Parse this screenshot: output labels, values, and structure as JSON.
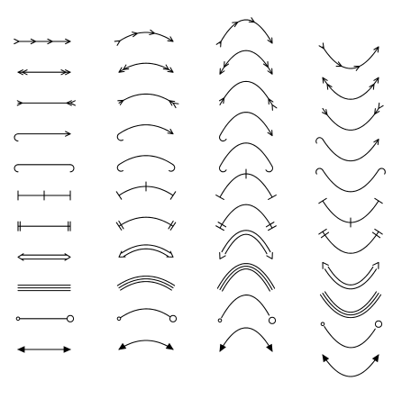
{
  "figure": {
    "description_visible_text": "",
    "column_count": 4,
    "row_count": 11,
    "curvature_levels": [
      "straight",
      "shallow",
      "half-circle",
      "deep"
    ],
    "arrow_styles": [
      "double-tail-double-head-barbed-feathers",
      "double-barbed-tails-both-ends",
      "feather-tail-to-double-barbs",
      "hook-tail-to-head",
      "hooks-both-ends",
      "tick-marks-both-ends-and-center",
      "double-bars-at-ends",
      "double-line-open-arrow-both-ends",
      "triple-line",
      "small-dot-to-open-circle",
      "solid-arrowheads-both-ends"
    ],
    "colors": {
      "stroke": "#000000",
      "background": "#ffffff"
    }
  }
}
